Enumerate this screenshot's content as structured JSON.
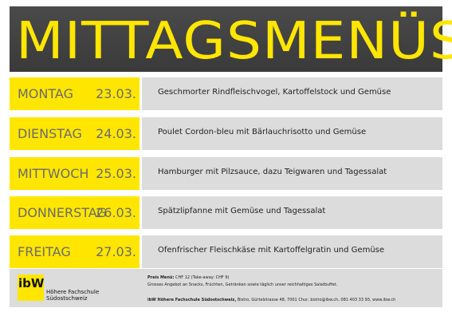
{
  "header": {
    "title": "MITTAGSMENÜS"
  },
  "menu": [
    {
      "day": "MONTAG",
      "date": "23.03.",
      "dish": "Geschmorter Rindfleischvogel, Kartoffelstock und Gemüse"
    },
    {
      "day": "DIENSTAG",
      "date": "24.03.",
      "dish": "Poulet Cordon-bleu mit Bärlauchrisotto und Gemüse"
    },
    {
      "day": "MITTWOCH",
      "date": "25.03.",
      "dish": "Hamburger mit Pilzsauce, dazu Teigwaren und Tagessalat"
    },
    {
      "day": "DONNERSTAG",
      "date": "26.03.",
      "dish": "Spätzlipfanne mit Gemüse und Tagessalat"
    },
    {
      "day": "FREITAG",
      "date": "27.03.",
      "dish": "Ofenfrischer Fleischkäse mit Kartoffelgratin und Gemüse"
    }
  ],
  "footer": {
    "logo": "ibW",
    "school": [
      "Höhere Fachschule",
      "Südostschweiz"
    ],
    "price_label": "Preis Menü:",
    "price": "CHF 12 (Take-away: CHF 9)",
    "offer": "Grosses Angebot an Snacks, Früchten, Getränken sowie täglich unser reichhaltiges Salatbuffet.",
    "address_name": "ibW Höhere Fachschule Südostschweiz,",
    "address": "Bistro, Gürtelstrasse 48, 7001 Chur, bistro@ibw.ch, 081 403 33 93, www.ibw.ch"
  }
}
